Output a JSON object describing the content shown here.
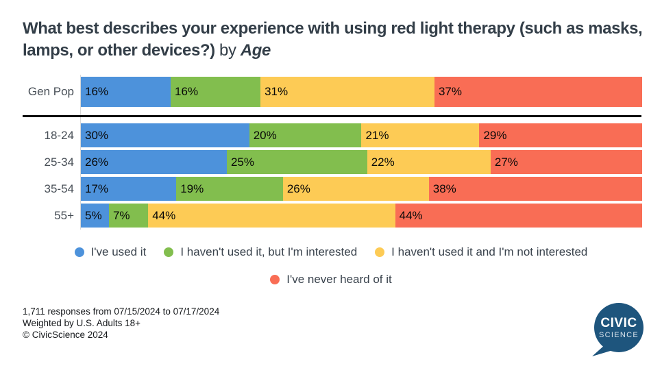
{
  "title": {
    "question": "What best describes your experience with using red light therapy (such as masks, lamps, or other devices?)",
    "connector": " by ",
    "group": "Age"
  },
  "chart_data": {
    "type": "bar",
    "orientation": "horizontal",
    "stacked": true,
    "value_suffix": "%",
    "xlim": [
      0,
      100
    ],
    "grid": false,
    "categories": [
      "Gen Pop",
      "18-24",
      "25-34",
      "35-54",
      "55+"
    ],
    "series": [
      {
        "name": "I've used it",
        "color": "#4D92DB",
        "values": [
          16,
          30,
          26,
          17,
          5
        ]
      },
      {
        "name": "I haven't used it, but I'm interested",
        "color": "#82BE4E",
        "values": [
          16,
          20,
          25,
          19,
          7
        ]
      },
      {
        "name": "I haven't used it and I'm not interested",
        "color": "#FDCB55",
        "values": [
          31,
          21,
          22,
          26,
          44
        ]
      },
      {
        "name": "I've never heard of it",
        "color": "#F96D55",
        "values": [
          37,
          29,
          27,
          38,
          44
        ]
      }
    ],
    "legend_rows": [
      [
        0,
        1,
        2
      ],
      [
        3
      ]
    ],
    "legend_position": "bottom",
    "separator_after_category": "Gen Pop"
  },
  "footer": {
    "line1": "1,711 responses from 07/15/2024 to 07/17/2024",
    "line2": "Weighted by U.S. Adults 18+",
    "line3": "© CivicScience 2024"
  },
  "logo": {
    "line1": "CIVIC",
    "line2": "SCIENCE",
    "color": "#1E557D"
  }
}
